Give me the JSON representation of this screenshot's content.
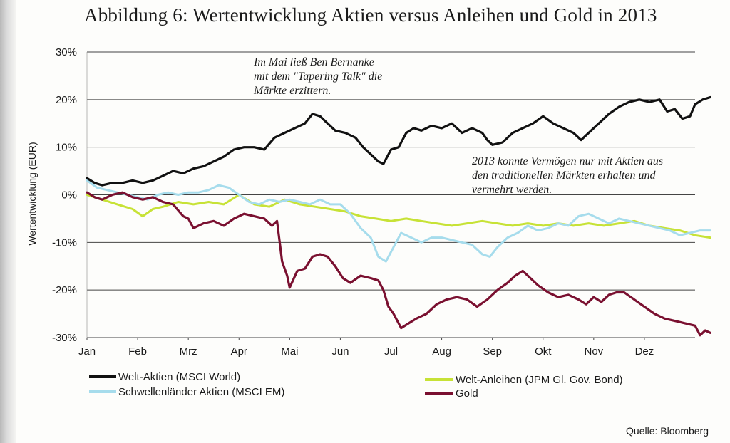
{
  "title": "Abbildung 6: Wertentwicklung Aktien versus Anleihen und Gold in 2013",
  "source": "Quelle: Bloomberg",
  "annotations": [
    {
      "lines": [
        "Im Mai ließ Ben Bernanke",
        "mit dem \"Tapering Talk\" die",
        "Märkte erzittern."
      ]
    },
    {
      "lines": [
        "2013 konnte Vermögen nur mit Aktien aus",
        "den traditionellen Märkten erhalten und",
        "vermehrt werden."
      ]
    }
  ],
  "chart_data": {
    "type": "line",
    "ylabel": "Wertentwicklung (EUR)",
    "xlabel": "",
    "ylim": [
      -30,
      30
    ],
    "yticks": [
      {
        "value": 30,
        "label": "30%"
      },
      {
        "value": 20,
        "label": "20%"
      },
      {
        "value": 10,
        "label": "10%"
      },
      {
        "value": 0,
        "label": "0%"
      },
      {
        "value": -10,
        "label": "-10%"
      },
      {
        "value": -20,
        "label": "-20%"
      },
      {
        "value": -30,
        "label": "-30%"
      }
    ],
    "xlim": [
      0,
      12
    ],
    "xticks": [
      {
        "value": 0,
        "label": "Jan"
      },
      {
        "value": 1,
        "label": "Feb"
      },
      {
        "value": 2,
        "label": "Mrz"
      },
      {
        "value": 3,
        "label": "Apr"
      },
      {
        "value": 4,
        "label": "Mai"
      },
      {
        "value": 5,
        "label": "Jun"
      },
      {
        "value": 6,
        "label": "Jul"
      },
      {
        "value": 7,
        "label": "Aug"
      },
      {
        "value": 8,
        "label": "Sep"
      },
      {
        "value": 9,
        "label": "Okt"
      },
      {
        "value": 10,
        "label": "Nov"
      },
      {
        "value": 11,
        "label": "Dez"
      }
    ],
    "grid": true,
    "series": [
      {
        "name": "Welt-Aktien (MSCI World)",
        "color": "#111111",
        "legend_pos": "left-1",
        "points": [
          [
            0,
            3.5
          ],
          [
            0.15,
            2.5
          ],
          [
            0.3,
            2
          ],
          [
            0.5,
            2.5
          ],
          [
            0.7,
            2.5
          ],
          [
            0.9,
            3
          ],
          [
            1.1,
            2.5
          ],
          [
            1.3,
            3
          ],
          [
            1.5,
            4
          ],
          [
            1.7,
            5
          ],
          [
            1.9,
            4.5
          ],
          [
            2.1,
            5.5
          ],
          [
            2.3,
            6
          ],
          [
            2.5,
            7
          ],
          [
            2.7,
            8
          ],
          [
            2.9,
            9.5
          ],
          [
            3.1,
            10
          ],
          [
            3.3,
            10
          ],
          [
            3.5,
            9.5
          ],
          [
            3.7,
            12
          ],
          [
            3.9,
            13
          ],
          [
            4.1,
            14
          ],
          [
            4.3,
            15
          ],
          [
            4.45,
            17
          ],
          [
            4.6,
            16.5
          ],
          [
            4.75,
            15
          ],
          [
            4.9,
            13.5
          ],
          [
            5.1,
            13
          ],
          [
            5.3,
            12
          ],
          [
            5.45,
            10
          ],
          [
            5.6,
            8.5
          ],
          [
            5.75,
            7
          ],
          [
            5.85,
            6.5
          ],
          [
            6.0,
            9.5
          ],
          [
            6.15,
            10
          ],
          [
            6.3,
            13
          ],
          [
            6.45,
            14
          ],
          [
            6.6,
            13.5
          ],
          [
            6.8,
            14.5
          ],
          [
            7.0,
            14
          ],
          [
            7.2,
            15
          ],
          [
            7.4,
            13
          ],
          [
            7.6,
            14
          ],
          [
            7.8,
            13
          ],
          [
            7.9,
            11.5
          ],
          [
            8.0,
            10.5
          ],
          [
            8.2,
            11
          ],
          [
            8.4,
            13
          ],
          [
            8.6,
            14
          ],
          [
            8.8,
            15
          ],
          [
            9.0,
            16.5
          ],
          [
            9.2,
            15
          ],
          [
            9.4,
            14
          ],
          [
            9.6,
            13
          ],
          [
            9.75,
            11.5
          ],
          [
            9.9,
            13
          ],
          [
            10.1,
            15
          ],
          [
            10.3,
            17
          ],
          [
            10.5,
            18.5
          ],
          [
            10.7,
            19.5
          ],
          [
            10.9,
            20
          ],
          [
            11.1,
            19.5
          ],
          [
            11.3,
            20
          ],
          [
            11.45,
            17.5
          ],
          [
            11.6,
            18
          ],
          [
            11.75,
            16
          ],
          [
            11.9,
            16.5
          ],
          [
            12.0,
            19
          ],
          [
            12.15,
            20
          ],
          [
            12.3,
            20.5
          ]
        ]
      },
      {
        "name": "Schwellenländer Aktien (MSCI EM)",
        "color": "#a6dcec",
        "legend_pos": "left-2",
        "points": [
          [
            0,
            3
          ],
          [
            0.2,
            1.5
          ],
          [
            0.4,
            1
          ],
          [
            0.6,
            0.5
          ],
          [
            0.8,
            0
          ],
          [
            1.0,
            -0.5
          ],
          [
            1.2,
            -1
          ],
          [
            1.4,
            0
          ],
          [
            1.6,
            0.5
          ],
          [
            1.8,
            0
          ],
          [
            2.0,
            0.5
          ],
          [
            2.2,
            0.5
          ],
          [
            2.4,
            1
          ],
          [
            2.6,
            2
          ],
          [
            2.8,
            1.5
          ],
          [
            3.0,
            0
          ],
          [
            3.2,
            -1.5
          ],
          [
            3.4,
            -2
          ],
          [
            3.6,
            -1
          ],
          [
            3.8,
            -1.5
          ],
          [
            4.0,
            -1
          ],
          [
            4.2,
            -1.5
          ],
          [
            4.4,
            -2
          ],
          [
            4.6,
            -1
          ],
          [
            4.8,
            -2
          ],
          [
            5.0,
            -2
          ],
          [
            5.2,
            -4
          ],
          [
            5.4,
            -7
          ],
          [
            5.6,
            -9
          ],
          [
            5.75,
            -13
          ],
          [
            5.9,
            -14
          ],
          [
            6.0,
            -12
          ],
          [
            6.2,
            -8
          ],
          [
            6.4,
            -9
          ],
          [
            6.6,
            -10
          ],
          [
            6.8,
            -9
          ],
          [
            7.0,
            -9
          ],
          [
            7.2,
            -9.5
          ],
          [
            7.4,
            -10
          ],
          [
            7.6,
            -10.5
          ],
          [
            7.8,
            -12.5
          ],
          [
            7.95,
            -13
          ],
          [
            8.1,
            -11
          ],
          [
            8.3,
            -9
          ],
          [
            8.5,
            -8
          ],
          [
            8.7,
            -6.5
          ],
          [
            8.9,
            -7.5
          ],
          [
            9.1,
            -7
          ],
          [
            9.3,
            -6
          ],
          [
            9.5,
            -6.5
          ],
          [
            9.7,
            -4.5
          ],
          [
            9.9,
            -4
          ],
          [
            10.1,
            -5
          ],
          [
            10.3,
            -6
          ],
          [
            10.5,
            -5
          ],
          [
            10.7,
            -5.5
          ],
          [
            10.9,
            -6
          ],
          [
            11.1,
            -6.5
          ],
          [
            11.3,
            -7
          ],
          [
            11.5,
            -7.5
          ],
          [
            11.7,
            -8.5
          ],
          [
            11.9,
            -8
          ],
          [
            12.1,
            -7.5
          ],
          [
            12.3,
            -7.5
          ]
        ]
      },
      {
        "name": "Welt-Anleihen (JPM Gl. Gov. Bond)",
        "color": "#c7e236",
        "legend_pos": "right-1",
        "points": [
          [
            0,
            0
          ],
          [
            0.3,
            -1
          ],
          [
            0.6,
            -2
          ],
          [
            0.9,
            -3
          ],
          [
            1.1,
            -4.5
          ],
          [
            1.3,
            -3
          ],
          [
            1.5,
            -2.5
          ],
          [
            1.8,
            -1.5
          ],
          [
            2.1,
            -2
          ],
          [
            2.4,
            -1.5
          ],
          [
            2.7,
            -2
          ],
          [
            3.0,
            0
          ],
          [
            3.3,
            -2
          ],
          [
            3.6,
            -2.5
          ],
          [
            3.9,
            -1
          ],
          [
            4.2,
            -2
          ],
          [
            4.5,
            -2.5
          ],
          [
            4.8,
            -3
          ],
          [
            5.1,
            -3.5
          ],
          [
            5.4,
            -4.5
          ],
          [
            5.7,
            -5
          ],
          [
            6.0,
            -5.5
          ],
          [
            6.3,
            -5
          ],
          [
            6.6,
            -5.5
          ],
          [
            6.9,
            -6
          ],
          [
            7.2,
            -6.5
          ],
          [
            7.5,
            -6
          ],
          [
            7.8,
            -5.5
          ],
          [
            8.1,
            -6
          ],
          [
            8.4,
            -6.5
          ],
          [
            8.7,
            -6
          ],
          [
            9.0,
            -6.5
          ],
          [
            9.3,
            -6
          ],
          [
            9.6,
            -6.5
          ],
          [
            9.9,
            -6
          ],
          [
            10.2,
            -6.5
          ],
          [
            10.5,
            -6
          ],
          [
            10.8,
            -5.5
          ],
          [
            11.1,
            -6.5
          ],
          [
            11.4,
            -7
          ],
          [
            11.7,
            -7.5
          ],
          [
            12.0,
            -8.5
          ],
          [
            12.3,
            -9
          ]
        ]
      },
      {
        "name": "Gold",
        "color": "#7a1030",
        "legend_pos": "right-2",
        "points": [
          [
            0,
            0.5
          ],
          [
            0.15,
            -0.5
          ],
          [
            0.3,
            -1
          ],
          [
            0.5,
            0
          ],
          [
            0.7,
            0.5
          ],
          [
            0.9,
            -0.5
          ],
          [
            1.1,
            -1
          ],
          [
            1.3,
            -0.5
          ],
          [
            1.5,
            -1.5
          ],
          [
            1.7,
            -2
          ],
          [
            1.9,
            -4.5
          ],
          [
            2.0,
            -5
          ],
          [
            2.1,
            -7
          ],
          [
            2.3,
            -6
          ],
          [
            2.5,
            -5.5
          ],
          [
            2.7,
            -6.5
          ],
          [
            2.9,
            -5
          ],
          [
            3.1,
            -4
          ],
          [
            3.3,
            -4.5
          ],
          [
            3.5,
            -5
          ],
          [
            3.65,
            -6.5
          ],
          [
            3.75,
            -5.5
          ],
          [
            3.85,
            -14
          ],
          [
            3.95,
            -17
          ],
          [
            4.0,
            -19.5
          ],
          [
            4.15,
            -16
          ],
          [
            4.3,
            -15.5
          ],
          [
            4.45,
            -13
          ],
          [
            4.6,
            -12.5
          ],
          [
            4.75,
            -13
          ],
          [
            4.9,
            -15
          ],
          [
            5.05,
            -17.5
          ],
          [
            5.2,
            -18.5
          ],
          [
            5.4,
            -17
          ],
          [
            5.6,
            -17.5
          ],
          [
            5.75,
            -18
          ],
          [
            5.85,
            -20
          ],
          [
            5.95,
            -23.5
          ],
          [
            6.05,
            -25
          ],
          [
            6.2,
            -28
          ],
          [
            6.35,
            -27
          ],
          [
            6.5,
            -26
          ],
          [
            6.7,
            -25
          ],
          [
            6.9,
            -23
          ],
          [
            7.1,
            -22
          ],
          [
            7.3,
            -21.5
          ],
          [
            7.5,
            -22
          ],
          [
            7.7,
            -23.5
          ],
          [
            7.9,
            -22
          ],
          [
            8.1,
            -20
          ],
          [
            8.3,
            -18.5
          ],
          [
            8.45,
            -17
          ],
          [
            8.6,
            -16
          ],
          [
            8.75,
            -17.5
          ],
          [
            8.9,
            -19
          ],
          [
            9.1,
            -20.5
          ],
          [
            9.3,
            -21.5
          ],
          [
            9.5,
            -21
          ],
          [
            9.7,
            -22
          ],
          [
            9.85,
            -23
          ],
          [
            10.0,
            -21.5
          ],
          [
            10.15,
            -22.5
          ],
          [
            10.3,
            -21
          ],
          [
            10.45,
            -20.5
          ],
          [
            10.6,
            -20.5
          ],
          [
            10.8,
            -22
          ],
          [
            11.0,
            -23.5
          ],
          [
            11.2,
            -25
          ],
          [
            11.4,
            -26
          ],
          [
            11.6,
            -26.5
          ],
          [
            11.8,
            -27
          ],
          [
            12.0,
            -27.5
          ],
          [
            12.1,
            -29.5
          ],
          [
            12.2,
            -28.5
          ],
          [
            12.3,
            -29
          ]
        ]
      }
    ]
  }
}
